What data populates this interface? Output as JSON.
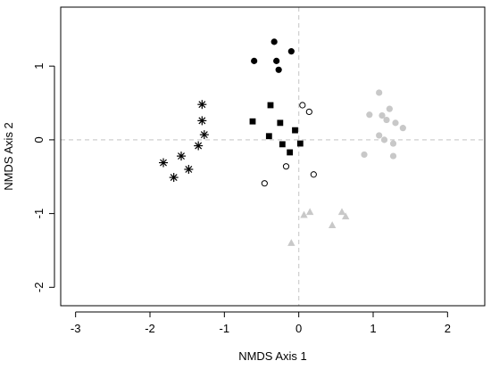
{
  "chart_data": {
    "type": "scatter",
    "xlabel": "NMDS Axis 1",
    "ylabel": "NMDS Axis 2",
    "xlim": [
      -3.2,
      2.5
    ],
    "ylim": [
      -2.25,
      1.8
    ],
    "xticks": [
      "-3",
      "-2",
      "-1",
      "0",
      "1",
      "2"
    ],
    "yticks": [
      "-2",
      "-1",
      "0",
      "1"
    ],
    "reference_lines": {
      "x": 0,
      "y": 0,
      "style": "dashed",
      "color": "#cfcfcf"
    },
    "series": [
      {
        "marker": "filled-circle",
        "color": "#000000",
        "points": [
          [
            -0.33,
            1.33
          ],
          [
            -0.1,
            1.2
          ],
          [
            -0.6,
            1.07
          ],
          [
            -0.3,
            1.07
          ],
          [
            -0.27,
            0.95
          ]
        ]
      },
      {
        "marker": "filled-square",
        "color": "#000000",
        "points": [
          [
            -0.38,
            0.47
          ],
          [
            -0.62,
            0.25
          ],
          [
            -0.25,
            0.23
          ],
          [
            -0.4,
            0.05
          ],
          [
            -0.05,
            0.13
          ],
          [
            -0.22,
            -0.06
          ],
          [
            0.02,
            -0.05
          ],
          [
            -0.12,
            -0.17
          ]
        ]
      },
      {
        "marker": "open-circle",
        "color": "#000000",
        "points": [
          [
            0.05,
            0.47
          ],
          [
            0.14,
            0.38
          ],
          [
            -0.17,
            -0.36
          ],
          [
            0.2,
            -0.47
          ],
          [
            -0.46,
            -0.59
          ]
        ]
      },
      {
        "marker": "asterisk",
        "color": "#000000",
        "points": [
          [
            -1.3,
            0.48
          ],
          [
            -1.3,
            0.26
          ],
          [
            -1.27,
            0.07
          ],
          [
            -1.35,
            -0.08
          ],
          [
            -1.58,
            -0.22
          ],
          [
            -1.82,
            -0.31
          ],
          [
            -1.48,
            -0.4
          ],
          [
            -1.68,
            -0.51
          ]
        ]
      },
      {
        "marker": "filled-circle",
        "color": "#c8c8c8",
        "points": [
          [
            1.08,
            0.64
          ],
          [
            0.95,
            0.34
          ],
          [
            1.12,
            0.33
          ],
          [
            1.22,
            0.42
          ],
          [
            1.18,
            0.27
          ],
          [
            1.3,
            0.23
          ],
          [
            1.4,
            0.16
          ],
          [
            1.08,
            0.06
          ],
          [
            1.15,
            0.0
          ],
          [
            1.27,
            -0.05
          ],
          [
            0.88,
            -0.2
          ],
          [
            1.27,
            -0.22
          ]
        ]
      },
      {
        "marker": "filled-triangle",
        "color": "#c8c8c8",
        "points": [
          [
            0.07,
            -1.02
          ],
          [
            0.15,
            -0.98
          ],
          [
            0.58,
            -0.98
          ],
          [
            0.63,
            -1.04
          ],
          [
            0.45,
            -1.16
          ],
          [
            -0.1,
            -1.4
          ]
        ]
      }
    ]
  }
}
